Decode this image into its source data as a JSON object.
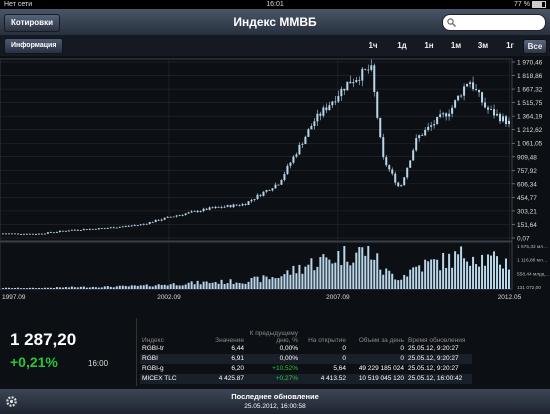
{
  "status": {
    "carrier": "Нет сети",
    "time": "16:01",
    "battery": "77 %"
  },
  "nav": {
    "back_label": "Котировки",
    "title": "Индекс ММВБ",
    "search_placeholder": ""
  },
  "toolbar": {
    "info_label": "Информация",
    "periods": [
      "1ч",
      "1д",
      "1н",
      "1м",
      "3м",
      "1г",
      "Все"
    ],
    "active_period": "Все"
  },
  "chart_data": {
    "type": "line",
    "title": "",
    "x_ticks": [
      "1997.09",
      "2002.09",
      "2007.09",
      "2012.05"
    ],
    "y_ticks": [
      "1 970,46",
      "1 818,86",
      "1 667,32",
      "1 515,75",
      "1 364,19",
      "1 212,62",
      "1 061,05",
      "909,48",
      "757,92",
      "606,34",
      "454,77",
      "303,21",
      "151,64",
      "0,07"
    ],
    "volume_ticks": [
      "1 675,32 мл…",
      "1 116,88 мл…",
      "558,44 млрд…",
      "131 072,00"
    ],
    "ylim": [
      0.07,
      1970.46
    ],
    "x": [
      "1997.09",
      "1998.09",
      "1999.09",
      "2000.09",
      "2001.09",
      "2002.09",
      "2003.09",
      "2004.09",
      "2005.09",
      "2006.09",
      "2007.09",
      "2008.05",
      "2008.09",
      "2009.03",
      "2009.09",
      "2010.09",
      "2011.03",
      "2011.09",
      "2012.05"
    ],
    "series": [
      {
        "values": [
          50,
          45,
          90,
          110,
          150,
          250,
          330,
          380,
          620,
          1300,
          1740,
          1900,
          900,
          550,
          1120,
          1450,
          1780,
          1450,
          1287.2
        ]
      }
    ]
  },
  "pager": {
    "count": 3,
    "active": 1
  },
  "summary": {
    "value": "1 287,20",
    "change": "+0,21%",
    "time": "16:00"
  },
  "table": {
    "headers": [
      "Индекс",
      "Значение",
      "К предыдущему дню, %",
      "На открытие",
      "Объем за день",
      "Время обновления"
    ],
    "rows": [
      [
        "RGBI-tr",
        "6,44",
        "0,00%",
        "0",
        "0",
        "25.05.12, 9:20:27"
      ],
      [
        "RGBI",
        "6,91",
        "0,00%",
        "0",
        "0",
        "25.05.12, 9:20:27"
      ],
      [
        "RGBI-g",
        "6,20",
        "+10,52%",
        "5,64",
        "49 229 185 024",
        "25.05.12, 9:20:27"
      ],
      [
        "MICEX TLC",
        "4 425.87",
        "+0,27%",
        "4 413.52",
        "10 519 045 120",
        "25.05.12, 16:00:42"
      ]
    ]
  },
  "footer": {
    "title": "Последнее обновление",
    "datetime": "25.05.2012, 16:00:58"
  },
  "colors": {
    "up": "#2ec43a",
    "candle": "#b9d6ea",
    "grid": "#2a3038"
  }
}
